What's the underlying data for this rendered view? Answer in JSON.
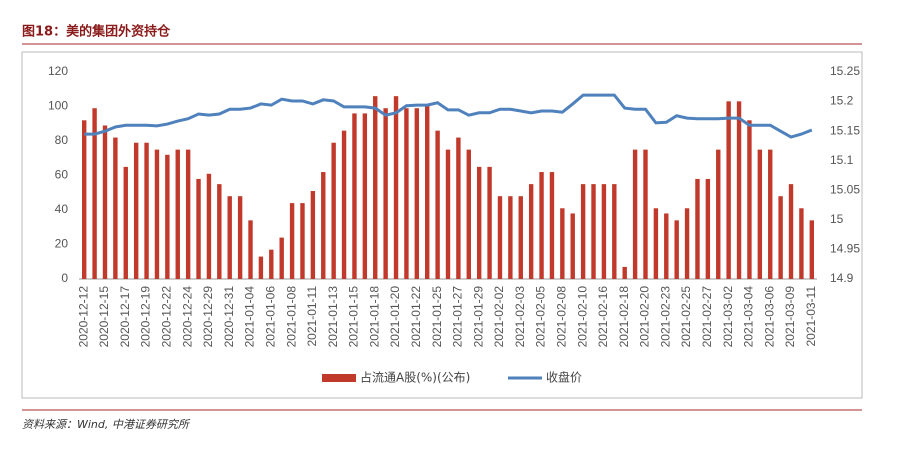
{
  "chart_data": {
    "type": "bar_line",
    "title": "图18：美的集团外资持仓",
    "source": "资料来源：Wind, 中港证券研究所",
    "categories": [
      "2020-12-12",
      null,
      "2020-12-15",
      null,
      "2020-12-17",
      null,
      "2020-12-19",
      null,
      "2020-12-22",
      null,
      "2020-12-24",
      null,
      "2020-12-29",
      null,
      "2020-12-31",
      null,
      "2021-01-04",
      null,
      "2021-01-06",
      null,
      "2021-01-08",
      null,
      "2021-01-11",
      null,
      "2021-01-13",
      null,
      "2021-01-15",
      null,
      "2021-01-18",
      null,
      "2021-01-20",
      null,
      "2021-01-22",
      null,
      "2021-01-25",
      null,
      "2021-01-27",
      null,
      "2021-01-29",
      null,
      "2021-02-02",
      null,
      "2021-02-03",
      null,
      "2021-02-05",
      null,
      "2021-02-08",
      null,
      "2021-02-10",
      null,
      "2021-02-16",
      null,
      "2021-02-18",
      null,
      "2021-02-20",
      null,
      "2021-02-23",
      null,
      "2021-02-25",
      null,
      "2021-02-27",
      null,
      "2021-03-02",
      null,
      "2021-03-04",
      null,
      "2021-03-06",
      null,
      "2021-03-09",
      null,
      "2021-03-11"
    ],
    "series": [
      {
        "name": "占流通A股(%)(公布)",
        "color": "#c0392b",
        "axis": "y",
        "values": [
          92,
          99,
          89,
          82,
          65,
          79,
          79,
          75,
          72,
          75,
          75,
          58,
          61,
          55,
          48,
          48,
          34,
          13,
          17,
          24,
          44,
          44,
          51,
          62,
          79,
          86,
          96,
          96,
          106,
          99,
          106,
          99,
          99,
          101,
          86,
          75,
          82,
          75,
          65,
          65,
          48,
          48,
          48,
          55,
          62,
          62,
          41,
          38,
          55,
          55,
          55,
          55,
          7,
          75,
          75,
          41,
          38,
          34,
          41,
          58,
          58,
          75,
          103,
          103,
          92,
          75,
          75,
          48,
          55,
          41,
          34
        ]
      },
      {
        "name": "收盘价",
        "color": "#4f81bd",
        "axis": "y2",
        "values": [
          15.145,
          15.145,
          15.15,
          15.157,
          15.16,
          15.16,
          15.16,
          15.159,
          15.162,
          15.167,
          15.171,
          15.179,
          15.177,
          15.179,
          15.187,
          15.187,
          15.189,
          15.196,
          15.194,
          15.204,
          15.201,
          15.201,
          15.196,
          15.203,
          15.201,
          15.191,
          15.191,
          15.191,
          15.189,
          15.177,
          15.181,
          15.193,
          15.194,
          15.194,
          15.198,
          15.186,
          15.186,
          15.177,
          15.181,
          15.181,
          15.187,
          15.187,
          15.184,
          15.181,
          15.184,
          15.184,
          15.182,
          15.196,
          15.211,
          15.211,
          15.211,
          15.211,
          15.189,
          15.187,
          15.187,
          15.164,
          15.165,
          15.176,
          15.172,
          15.171,
          15.171,
          15.171,
          15.172,
          15.172,
          15.16,
          15.16,
          15.16,
          15.15,
          15.14,
          15.145,
          15.152
        ]
      }
    ],
    "ylim": [
      0,
      120
    ],
    "yticks": [
      0,
      20,
      40,
      60,
      80,
      100,
      120
    ],
    "y2lim": [
      14.9,
      15.25
    ],
    "y2ticks": [
      14.9,
      14.95,
      15,
      15.05,
      15.1,
      15.15,
      15.2,
      15.25
    ]
  }
}
